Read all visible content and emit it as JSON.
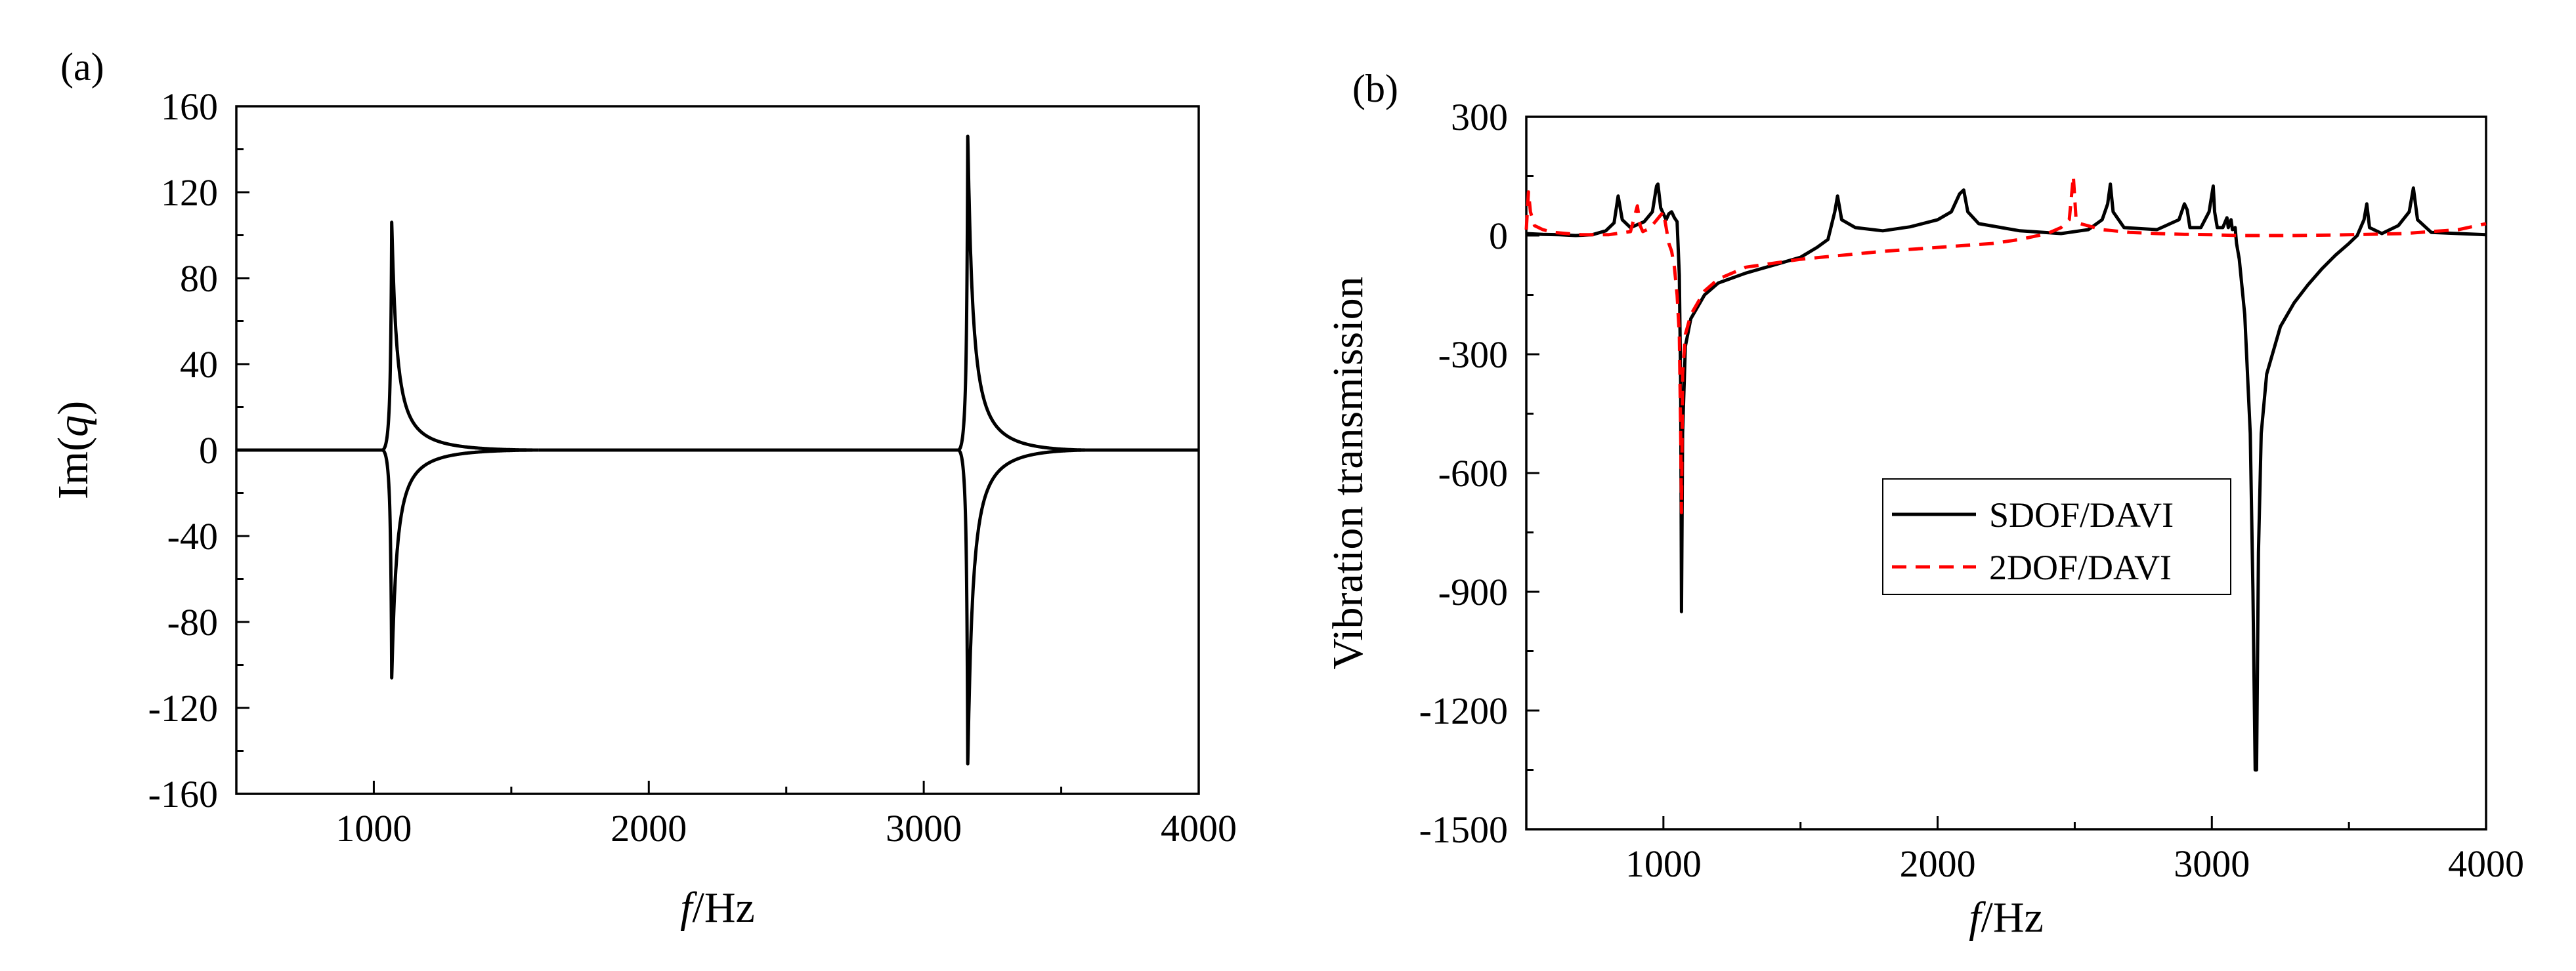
{
  "chart_data": [
    {
      "panel": "(a)",
      "type": "line",
      "xlabel_italic": "f",
      "xlabel_unit": "/Hz",
      "ylabel_prefix": "Im(",
      "ylabel_italic": "q",
      "ylabel_suffix": ")",
      "xlim": [
        500,
        4000
      ],
      "ylim": [
        -160,
        160
      ],
      "xticks": [
        1000,
        2000,
        3000,
        4000
      ],
      "yticks": [
        -160,
        -120,
        -80,
        -40,
        0,
        40,
        80,
        120,
        160
      ],
      "series": [
        {
          "name": "Im(q)",
          "color": "#000000",
          "style": "solid",
          "resonances": [
            {
              "f0": 1065,
              "peak": 106,
              "branch_end_f": 1600
            },
            {
              "f0": 3160,
              "peak": 146,
              "branch_end_f": 3600
            }
          ]
        }
      ]
    },
    {
      "panel": "(b)",
      "type": "line",
      "xlabel_italic": "f",
      "xlabel_unit": "/Hz",
      "ylabel": "Vibration transmission",
      "xlim": [
        500,
        4000
      ],
      "ylim": [
        -1500,
        300
      ],
      "xticks": [
        1000,
        2000,
        3000,
        4000
      ],
      "yticks": [
        -1500,
        -1200,
        -900,
        -600,
        -300,
        0,
        300
      ],
      "legend_position": "center-right",
      "series": [
        {
          "name": "SDOF/DAVI",
          "color": "#000000",
          "style": "solid",
          "x": [
            500,
            560,
            620,
            680,
            740,
            790,
            820,
            835,
            850,
            880,
            930,
            960,
            975,
            980,
            990,
            1010,
            1020,
            1030,
            1040,
            1050,
            1058,
            1063,
            1066,
            1070,
            1080,
            1100,
            1150,
            1200,
            1300,
            1400,
            1500,
            1560,
            1600,
            1625,
            1635,
            1650,
            1700,
            1800,
            1900,
            2000,
            2050,
            2080,
            2095,
            2110,
            2150,
            2300,
            2450,
            2550,
            2600,
            2620,
            2630,
            2640,
            2680,
            2800,
            2880,
            2900,
            2910,
            2920,
            2960,
            2990,
            3005,
            3010,
            3020,
            3040,
            3055,
            3060,
            3070,
            3075,
            3085,
            3090,
            3100,
            3120,
            3140,
            3150,
            3158,
            3163,
            3170,
            3180,
            3200,
            3250,
            3300,
            3350,
            3400,
            3450,
            3500,
            3530,
            3555,
            3565,
            3575,
            3620,
            3680,
            3720,
            3735,
            3750,
            3800,
            3900,
            4000
          ],
          "y": [
            5,
            3,
            2,
            0,
            2,
            12,
            32,
            100,
            40,
            20,
            35,
            60,
            125,
            130,
            70,
            40,
            55,
            60,
            45,
            35,
            -100,
            -380,
            -950,
            -500,
            -280,
            -210,
            -150,
            -120,
            -95,
            -75,
            -55,
            -30,
            -10,
            60,
            100,
            40,
            20,
            12,
            22,
            40,
            60,
            105,
            115,
            60,
            30,
            12,
            5,
            15,
            40,
            80,
            130,
            60,
            20,
            15,
            40,
            80,
            65,
            20,
            20,
            60,
            125,
            60,
            20,
            20,
            45,
            20,
            40,
            15,
            20,
            -20,
            -60,
            -200,
            -500,
            -900,
            -1350,
            -1350,
            -800,
            -500,
            -350,
            -230,
            -170,
            -125,
            -85,
            -50,
            -20,
            0,
            40,
            80,
            20,
            5,
            25,
            60,
            120,
            40,
            8,
            5,
            2
          ]
        },
        {
          "name": "2DOF/DAVI",
          "color": "#ff0000",
          "style": "dashed",
          "x": [
            500,
            508,
            515,
            530,
            560,
            600,
            700,
            800,
            880,
            905,
            915,
            925,
            950,
            1000,
            1020,
            1030,
            1040,
            1050,
            1058,
            1063,
            1066,
            1070,
            1080,
            1100,
            1150,
            1200,
            1300,
            1500,
            1800,
            2000,
            2200,
            2300,
            2400,
            2450,
            2480,
            2495,
            2505,
            2520,
            2600,
            2700,
            2800,
            2900,
            3000,
            3100,
            3200,
            3300,
            3500,
            3700,
            3900,
            4000
          ],
          "y": [
            15,
            110,
            60,
            25,
            15,
            8,
            2,
            2,
            10,
            75,
            25,
            10,
            18,
            60,
            -20,
            -40,
            -80,
            -150,
            -250,
            -500,
            -700,
            -350,
            -250,
            -200,
            -140,
            -110,
            -80,
            -60,
            -40,
            -30,
            -20,
            -10,
            5,
            20,
            40,
            150,
            40,
            30,
            15,
            8,
            5,
            3,
            2,
            0,
            0,
            0,
            2,
            5,
            15,
            30
          ]
        }
      ]
    }
  ]
}
